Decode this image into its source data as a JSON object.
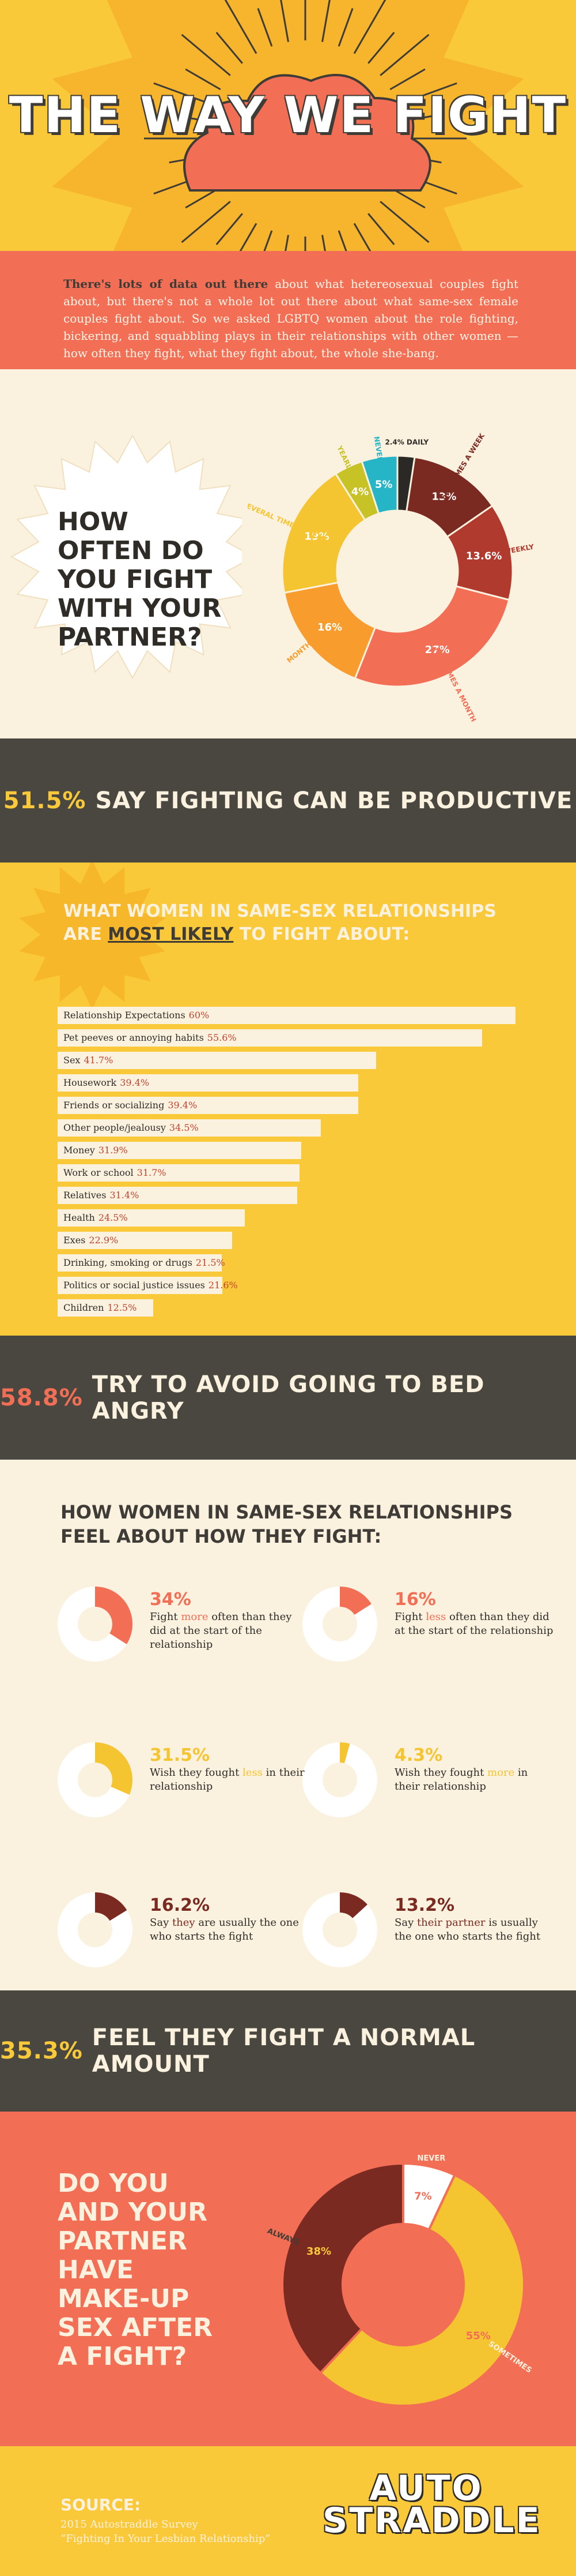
{
  "header": {
    "title": "THE WAY WE FIGHT"
  },
  "intro": {
    "lead": "There's lots of data out there",
    "body": " about what hetereosexual couples fight about, but there's not a whole lot out there about what same-sex female couples fight about. So we asked LGBTQ women about the role fighting, bickering, and squabbling plays in their relationships with other women — how often they fight, what they fight about, the whole she-bang."
  },
  "frequency": {
    "question": "HOW OFTEN DO YOU FIGHT WITH YOUR PARTNER?"
  },
  "band_productive": {
    "pct": "51.5%",
    "text": "SAY FIGHTING CAN BE PRODUCTIVE"
  },
  "likely": {
    "heading_before": "WHAT WOMEN IN SAME-SEX RELATIONSHIPS ARE ",
    "heading_emph": "MOST LIKELY",
    "heading_after": " TO FIGHT ABOUT:"
  },
  "band_bed": {
    "pct": "58.8%",
    "text": "TRY TO AVOID GOING TO BED ANGRY"
  },
  "feel": {
    "heading": "HOW WOMEN IN SAME-SEX RELATIONSHIPS FEEL ABOUT HOW THEY FIGHT:",
    "stats": [
      {
        "pct": "34%",
        "value": 34,
        "pre": "Fight ",
        "em": "more",
        "post": " often than they did at the start of the relationship",
        "color": "#f26e55"
      },
      {
        "pct": "16%",
        "value": 16,
        "pre": "Fight ",
        "em": "less",
        "post": " often than they did at the start of the relationship",
        "color": "#f26e55"
      },
      {
        "pct": "31.5%",
        "value": 31.5,
        "pre": "Wish they fought ",
        "em": "less",
        "post": " in their relationship",
        "color": "#f5c431"
      },
      {
        "pct": "4.3%",
        "value": 4.3,
        "pre": "Wish they fought ",
        "em": "more",
        "post": " in their relationship",
        "color": "#f5c431"
      },
      {
        "pct": "16.2%",
        "value": 16.2,
        "pre": "Say ",
        "em": "they",
        "post": " are usually the one who starts the fight",
        "color": "#7a2a21"
      },
      {
        "pct": "13.2%",
        "value": 13.2,
        "pre": "Say ",
        "em": "their partner",
        "post": " is usually the one who starts the fight",
        "color": "#7a2a21"
      }
    ]
  },
  "band_normal": {
    "pct": "35.3%",
    "text": "FEEL THEY FIGHT A NORMAL AMOUNT"
  },
  "makeup": {
    "question": "DO YOU AND YOUR PARTNER HAVE MAKE-UP SEX AFTER A FIGHT?"
  },
  "source": {
    "heading": "SOURCE:",
    "line1": "2015 Autostraddle Survey",
    "line2": "“Fighting In Your Lesbian Relationship”",
    "logo_line1": "AUTO",
    "logo_line2": "STRADDLE"
  },
  "chart_data": [
    {
      "type": "pie",
      "title": "HOW OFTEN DO YOU FIGHT WITH YOUR PARTNER?",
      "categories": [
        "DAILY",
        "FEW TIMES A WEEK",
        "WEEKLY",
        "A FEW TIMES A MONTH",
        "MONTHLY",
        "SEVERAL TIMES A YEAR",
        "YEARLY",
        "NEVER"
      ],
      "values": [
        2.4,
        13,
        13.6,
        27,
        16,
        19,
        4,
        5
      ],
      "labels": [
        "2.4%",
        "13%",
        "13.6%",
        "27%",
        "16%",
        "19%",
        "4%",
        "5%"
      ],
      "colors": [
        "#2b2926",
        "#7a2a21",
        "#b13a2e",
        "#f26e55",
        "#f79c2d",
        "#f5c431",
        "#c7c226",
        "#25b5c7"
      ]
    },
    {
      "type": "bar",
      "title": "WHAT WOMEN IN SAME-SEX RELATIONSHIPS ARE MOST LIKELY TO FIGHT ABOUT:",
      "categories": [
        "Relationship Expectations",
        "Pet peeves or annoying habits",
        "Sex",
        "Housework",
        "Friends or socializing",
        "Other people/jealousy",
        "Money",
        "Work or school",
        "Relatives",
        "Health",
        "Exes",
        "Drinking, smoking or drugs",
        "Politics or social justice issues",
        "Children"
      ],
      "values": [
        60,
        55.6,
        41.7,
        39.4,
        39.4,
        34.5,
        31.9,
        31.7,
        31.4,
        24.5,
        22.9,
        21.5,
        21.6,
        12.5
      ],
      "labels": [
        "60%",
        "55.6%",
        "41.7%",
        "39.4%",
        "39.4%",
        "34.5%",
        "31.9%",
        "31.7%",
        "31.4%",
        "24.5%",
        "22.9%",
        "21.5%",
        "21.6%",
        "12.5%"
      ]
    },
    {
      "type": "pie",
      "title": "DO YOU AND YOUR PARTNER HAVE MAKE-UP SEX AFTER A FIGHT?",
      "categories": [
        "NEVER",
        "SOMETIMES",
        "ALWAYS"
      ],
      "values": [
        7,
        55,
        38
      ],
      "labels": [
        "7%",
        "55%",
        "38%"
      ],
      "colors": [
        "#ffffff",
        "#f5c431",
        "#7a2a21"
      ]
    }
  ]
}
